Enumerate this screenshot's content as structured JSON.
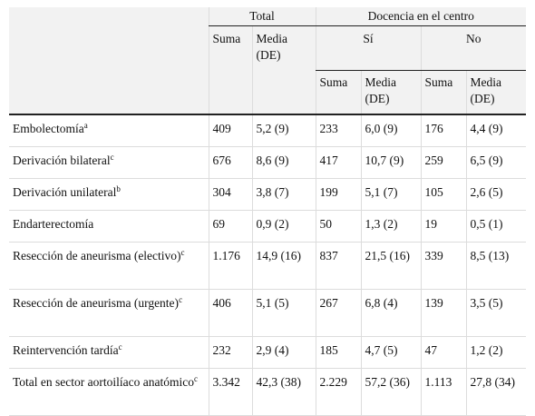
{
  "headers": {
    "group_total": "Total",
    "group_docencia": "Docencia en el centro",
    "si": "Sí",
    "no": "No",
    "suma": "Suma",
    "media": "Media (DE)"
  },
  "rows": [
    {
      "label": "Embolectomía",
      "sup": "a",
      "total_suma": "409",
      "total_media": "5,2 (9)",
      "si_suma": "233",
      "si_media": "6,0 (9)",
      "no_suma": "176",
      "no_media": "4,4 (9)"
    },
    {
      "label": "Derivación bilateral",
      "sup": "c",
      "total_suma": "676",
      "total_media": "8,6 (9)",
      "si_suma": "417",
      "si_media": "10,7 (9)",
      "no_suma": "259",
      "no_media": "6,5 (9)"
    },
    {
      "label": "Derivación unilateral",
      "sup": "b",
      "total_suma": "304",
      "total_media": "3,8 (7)",
      "si_suma": "199",
      "si_media": "5,1 (7)",
      "no_suma": "105",
      "no_media": "2,6 (5)"
    },
    {
      "label": "Endarterectomía",
      "sup": "",
      "total_suma": "69",
      "total_media": "0,9 (2)",
      "si_suma": "50",
      "si_media": "1,3 (2)",
      "no_suma": "19",
      "no_media": "0,5 (1)"
    },
    {
      "label": "Resección de aneurisma (electivo)",
      "sup": "c",
      "total_suma": "1.176",
      "total_media": "14,9 (16)",
      "si_suma": "837",
      "si_media": "21,5 (16)",
      "no_suma": "339",
      "no_media": "8,5 (13)"
    },
    {
      "label": "Resección de aneurisma (urgente)",
      "sup": "c",
      "total_suma": "406",
      "total_media": "5,1 (5)",
      "si_suma": "267",
      "si_media": "6,8 (4)",
      "no_suma": "139",
      "no_media": "3,5 (5)"
    },
    {
      "label": "Reintervención tardía",
      "sup": "c",
      "total_suma": "232",
      "total_media": "2,9 (4)",
      "si_suma": "185",
      "si_media": "4,7 (5)",
      "no_suma": "47",
      "no_media": "1,2 (2)"
    },
    {
      "label": "Total en sector aortoilíaco anatómico",
      "sup": "c",
      "total_suma": "3.342",
      "total_media": "42,3 (38)",
      "si_suma": "2.229",
      "si_media": "57,2 (36)",
      "no_suma": "1.113",
      "no_media": "27,8 (34)"
    }
  ]
}
